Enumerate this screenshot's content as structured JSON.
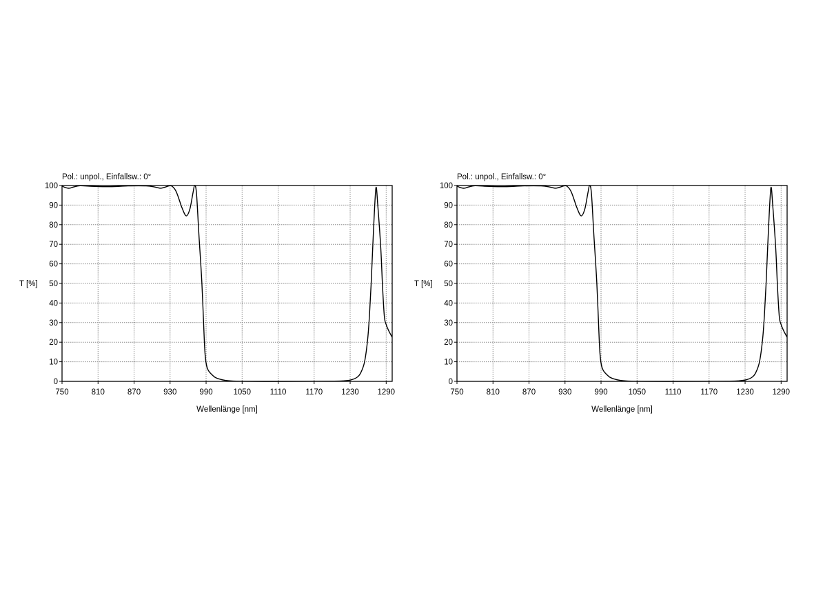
{
  "chart_data": [
    {
      "type": "line",
      "title": "Pol.: unpol., Einfallsw.: 0°",
      "xlabel": "Wellenlänge [nm]",
      "ylabel": "T [%]",
      "xlim": [
        750,
        1300
      ],
      "ylim": [
        0,
        100
      ],
      "xticks": [
        750,
        810,
        870,
        930,
        990,
        1050,
        1110,
        1170,
        1230,
        1290
      ],
      "yticks": [
        0,
        10,
        20,
        30,
        40,
        50,
        60,
        70,
        80,
        90,
        100
      ],
      "grid": true,
      "line_color": "#000000",
      "series": [
        {
          "x": [
            750,
            755,
            762,
            770,
            780,
            800,
            830,
            860,
            890,
            905,
            914,
            922,
            931,
            940,
            950,
            957,
            963,
            968,
            971,
            974,
            978,
            983,
            987,
            989,
            993,
            1003,
            1012,
            1022,
            1040,
            1100,
            1200,
            1220,
            1232,
            1242,
            1248,
            1254,
            1259,
            1262,
            1265,
            1269,
            1273,
            1276,
            1281,
            1284,
            1287,
            1290,
            1294,
            1300
          ],
          "y": [
            99.8,
            99.0,
            98.6,
            99.3,
            99.9,
            99.6,
            99.4,
            99.8,
            99.8,
            99.2,
            98.6,
            99.2,
            100,
            97,
            88.5,
            84.5,
            88,
            96,
            100,
            96,
            75,
            50,
            21,
            11.6,
            6,
            2.5,
            1.2,
            0.5,
            0.1,
            0,
            0.1,
            0.3,
            0.8,
            2.2,
            4.6,
            10,
            21,
            33,
            50,
            78,
            99,
            90,
            68,
            48,
            33,
            29,
            26,
            22.5
          ]
        }
      ]
    },
    {
      "type": "line",
      "title": "Pol.: unpol., Einfallsw.: 0°",
      "xlabel": "Wellenlänge [nm]",
      "ylabel": "T [%]",
      "xlim": [
        750,
        1300
      ],
      "ylim": [
        0,
        100
      ],
      "xticks": [
        750,
        810,
        870,
        930,
        990,
        1050,
        1110,
        1170,
        1230,
        1290
      ],
      "yticks": [
        0,
        10,
        20,
        30,
        40,
        50,
        60,
        70,
        80,
        90,
        100
      ],
      "grid": true,
      "line_color": "#000000",
      "series": [
        {
          "x": [
            750,
            755,
            762,
            770,
            780,
            800,
            830,
            860,
            890,
            905,
            914,
            922,
            931,
            940,
            950,
            957,
            963,
            968,
            971,
            974,
            978,
            983,
            987,
            989,
            993,
            1003,
            1012,
            1022,
            1040,
            1100,
            1200,
            1220,
            1232,
            1242,
            1248,
            1254,
            1259,
            1262,
            1265,
            1269,
            1273,
            1276,
            1281,
            1284,
            1287,
            1290,
            1294,
            1300
          ],
          "y": [
            99.8,
            99.0,
            98.6,
            99.3,
            99.9,
            99.6,
            99.4,
            99.8,
            99.8,
            99.2,
            98.6,
            99.2,
            100,
            97,
            88.5,
            84.5,
            88,
            96,
            100,
            96,
            75,
            50,
            21,
            11.6,
            6,
            2.5,
            1.2,
            0.5,
            0.1,
            0,
            0.1,
            0.3,
            0.8,
            2.2,
            4.6,
            10,
            21,
            33,
            50,
            78,
            99,
            90,
            68,
            48,
            33,
            29,
            26,
            22.5
          ]
        }
      ]
    }
  ]
}
